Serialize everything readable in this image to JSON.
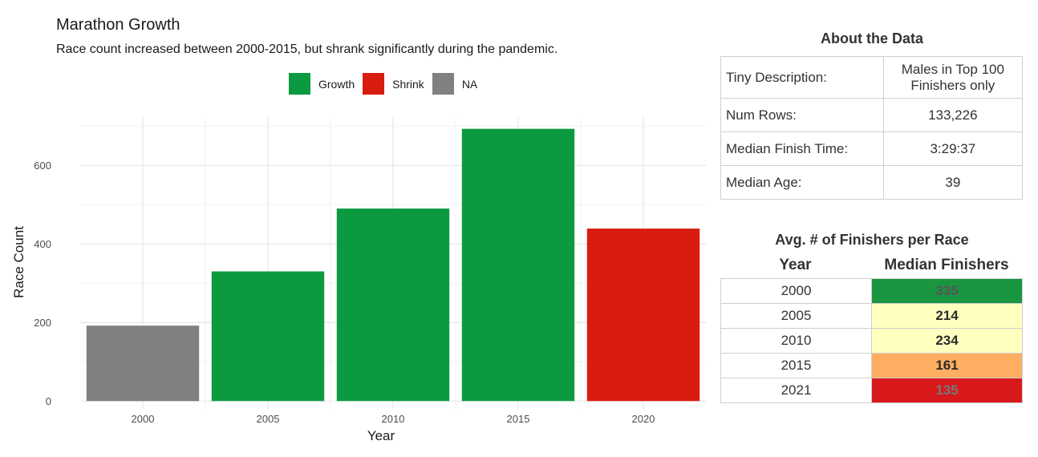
{
  "chart_data": {
    "type": "bar",
    "title": "Marathon Growth",
    "subtitle": "Race count increased between 2000-2015, but shrank significantly during the pandemic.",
    "xlabel": "Year",
    "ylabel": "Race Count",
    "categories": [
      "2000",
      "2005",
      "2010",
      "2015",
      "2020"
    ],
    "values": [
      192,
      330,
      490,
      693,
      439
    ],
    "status": [
      "NA",
      "Growth",
      "Growth",
      "Growth",
      "Shrink"
    ],
    "ylim": [
      -20,
      725
    ],
    "yticks": [
      0,
      200,
      400,
      600
    ],
    "grid": true,
    "legend_position": "top",
    "legend": [
      {
        "label": "Growth",
        "color": "#0c9a40"
      },
      {
        "label": "Shrink",
        "color": "#d91c10"
      },
      {
        "label": "NA",
        "color": "#808080"
      }
    ]
  },
  "about": {
    "title": "About the Data",
    "rows": [
      {
        "label": "Tiny Description:",
        "value_line1": "Males in Top 100",
        "value_line2": "Finishers only"
      },
      {
        "label": "Num Rows:",
        "value": "133,226"
      },
      {
        "label": "Median Finish Time:",
        "value": "3:29:37"
      },
      {
        "label": "Median Age:",
        "value": "39"
      }
    ]
  },
  "finishers": {
    "title": "Avg. # of Finishers per Race",
    "col_year": "Year",
    "col_median": "Median Finishers",
    "rows": [
      {
        "year": "2000",
        "median": "335",
        "color": "#1a9641",
        "text_color": "#555555"
      },
      {
        "year": "2005",
        "median": "214",
        "color": "#ffffc0",
        "text_color": "#2b2b2b"
      },
      {
        "year": "2010",
        "median": "234",
        "color": "#ffffc0",
        "text_color": "#2b2b2b"
      },
      {
        "year": "2015",
        "median": "161",
        "color": "#fdae61",
        "text_color": "#2b2b2b"
      },
      {
        "year": "2021",
        "median": "135",
        "color": "#d7191c",
        "text_color": "#777777"
      }
    ]
  }
}
